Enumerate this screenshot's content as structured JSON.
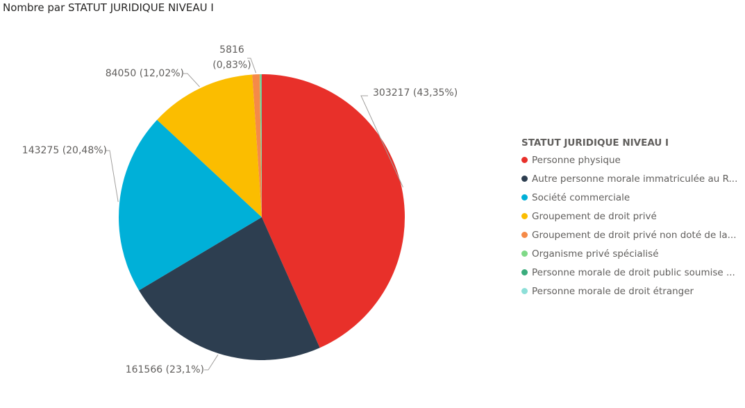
{
  "chart_data": {
    "type": "pie",
    "title": "Nombre par STATUT JURIDIQUE NIVEAU I",
    "legend_title": "STATUT JURIDIQUE NIVEAU I",
    "legend_position": "right",
    "slices": [
      {
        "label": "Personne physique",
        "value": 303217,
        "display": "303217 (43,35%)",
        "color": "#e8302a"
      },
      {
        "label": "Autre personne morale immatriculée au R...",
        "value": 161566,
        "display": "161566 (23,1%)",
        "color": "#2d3e50"
      },
      {
        "label": "Société commerciale",
        "value": 143275,
        "display": "143275 (20,48%)",
        "color": "#00b0d8"
      },
      {
        "label": "Groupement de droit privé",
        "value": 84050,
        "display": "84050 (12,02%)",
        "color": "#fbbd00"
      },
      {
        "label": "Groupement de droit privé non doté de la...",
        "value": 5816,
        "display": "5816 (0,83%)",
        "color": "#f58a48"
      },
      {
        "label": "Organisme privé spécialisé",
        "value": 850,
        "display": "",
        "color": "#7fd987"
      },
      {
        "label": "Personne morale de droit public soumise ...",
        "value": 500,
        "display": "",
        "color": "#3aac7c"
      },
      {
        "label": "Personne morale de droit étranger",
        "value": 250,
        "display": "",
        "color": "#8ddfd8"
      }
    ]
  }
}
